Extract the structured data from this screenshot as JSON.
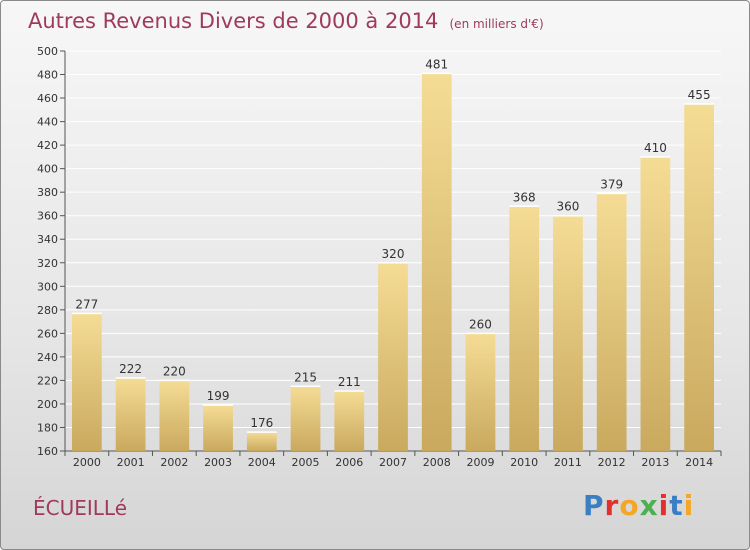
{
  "title": "Autres Revenus Divers de 2000 à 2014",
  "unit": "(en milliers d'€)",
  "commune": "ÉCUEILLé",
  "logo": {
    "text": "Proxiti",
    "colors": [
      "#3a7fc4",
      "#e3302f",
      "#f5a623",
      "#4caf50",
      "#e3302f",
      "#3a7fc4",
      "#f5a623"
    ]
  },
  "chart_data": {
    "type": "bar",
    "categories": [
      "2000",
      "2001",
      "2002",
      "2003",
      "2004",
      "2005",
      "2006",
      "2007",
      "2008",
      "2009",
      "2010",
      "2011",
      "2012",
      "2013",
      "2014"
    ],
    "values": [
      277,
      222,
      220,
      199,
      176,
      215,
      211,
      320,
      481,
      260,
      368,
      360,
      379,
      410,
      455
    ],
    "ylim": [
      160,
      500
    ],
    "yticks": [
      160,
      180,
      200,
      220,
      240,
      260,
      280,
      300,
      320,
      340,
      360,
      380,
      400,
      420,
      440,
      460,
      480,
      500
    ],
    "grid": true,
    "bar_color_top": "#f5dc95",
    "bar_color_bottom": "#c9a95e"
  }
}
